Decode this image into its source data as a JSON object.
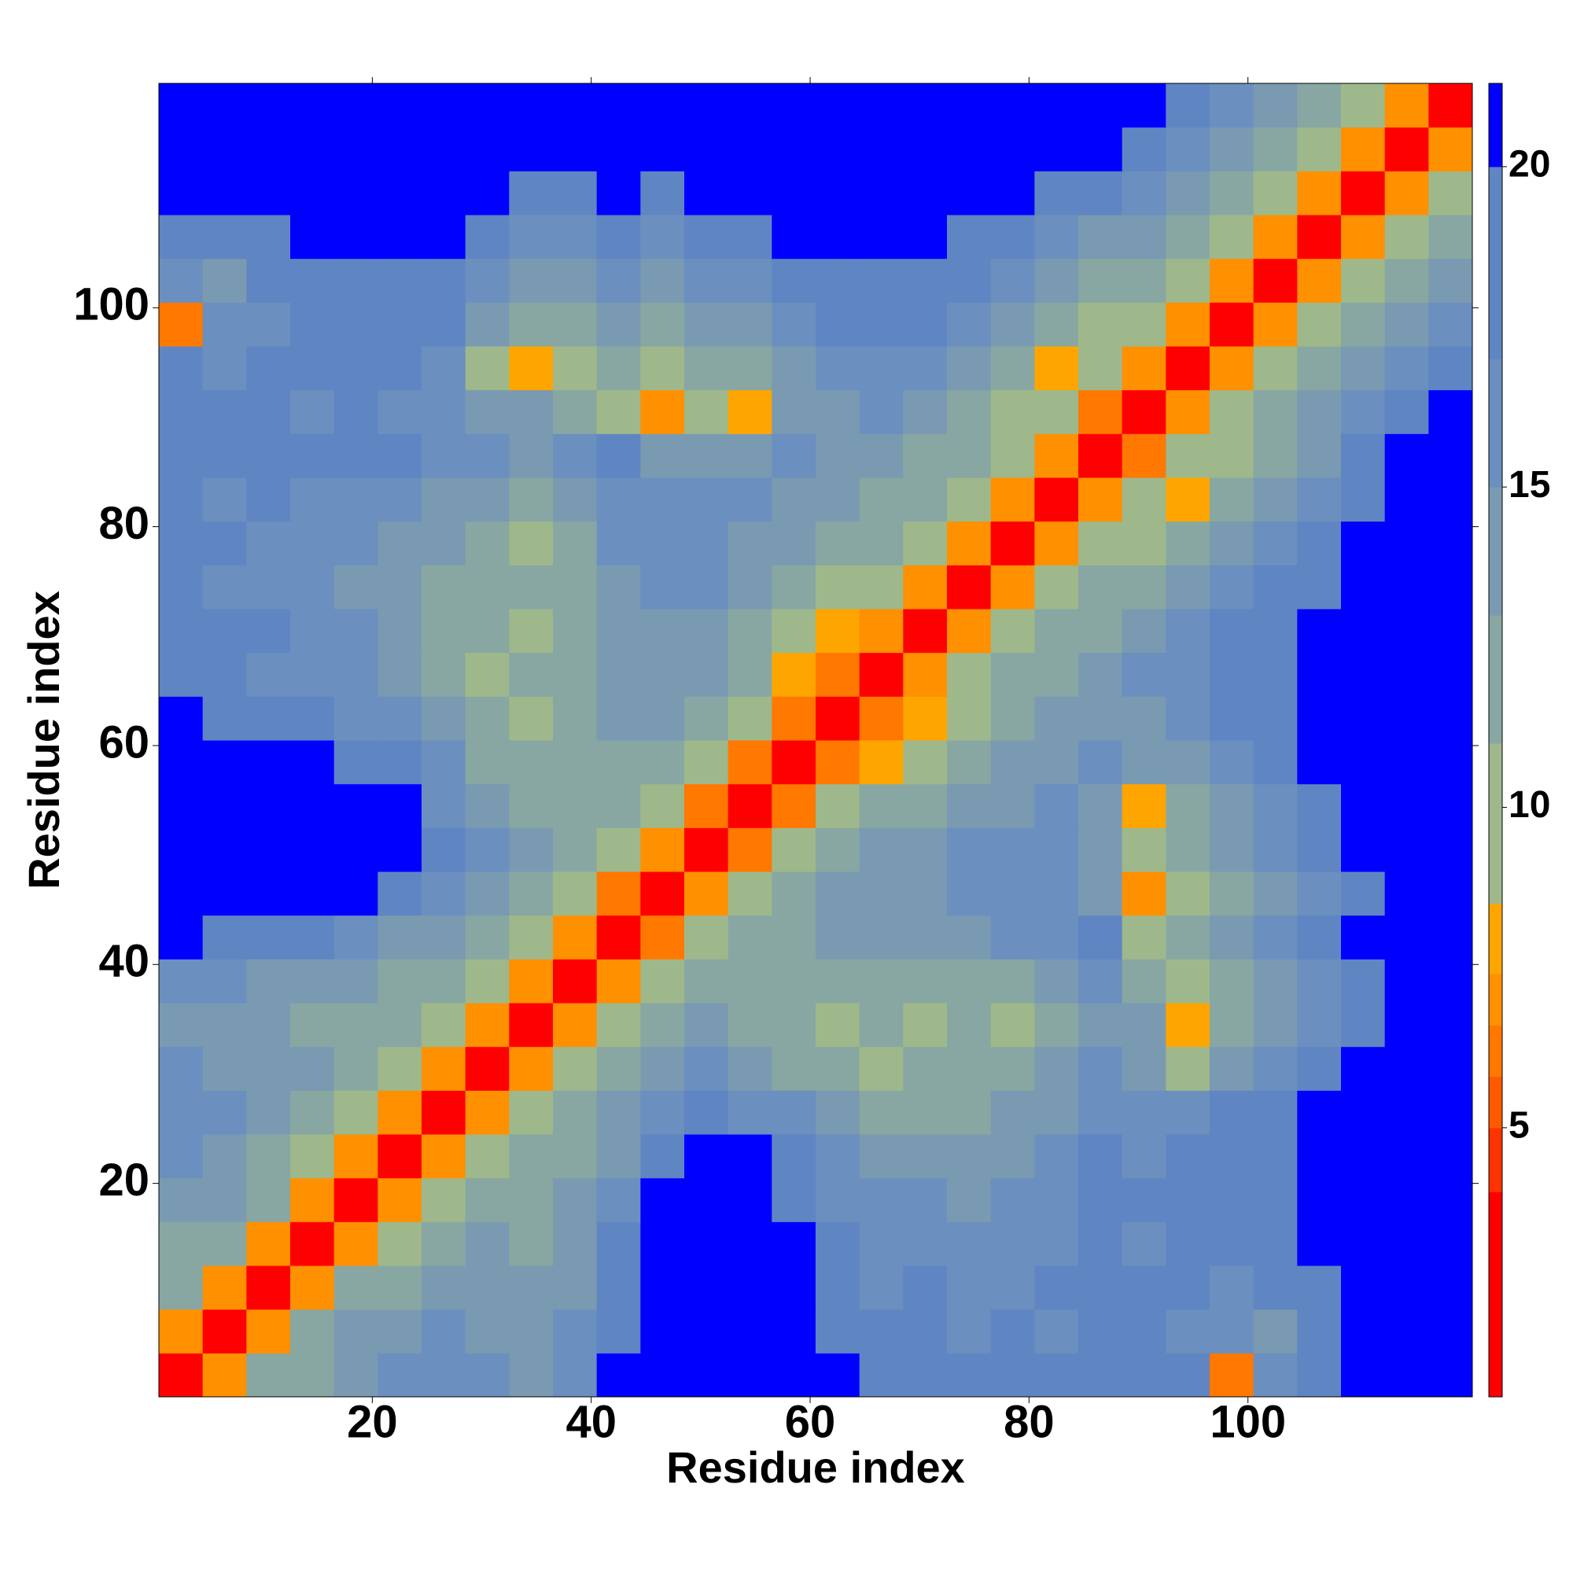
{
  "chart_data": {
    "type": "heatmap",
    "xlabel": "Residue index",
    "ylabel": "Residue index",
    "x_edges": [
      0.5,
      4.5,
      8.5,
      12.5,
      16.5,
      20.5,
      24.5,
      28.5,
      32.5,
      36.5,
      40.5,
      44.5,
      48.5,
      52.5,
      56.5,
      60.5,
      64.5,
      68.5,
      72.5,
      76.5,
      80.5,
      84.5,
      88.5,
      92.5,
      96.5,
      100.5,
      104.5,
      108.5,
      112.5,
      116.5,
      120.5
    ],
    "y_edges": [
      0.5,
      4.5,
      8.5,
      12.5,
      16.5,
      20.5,
      24.5,
      28.5,
      32.5,
      36.5,
      40.5,
      44.5,
      48.5,
      52.5,
      56.5,
      60.5,
      64.5,
      68.5,
      72.5,
      76.5,
      80.5,
      84.5,
      88.5,
      92.5,
      96.5,
      100.5,
      104.5,
      108.5,
      112.5,
      116.5,
      120.5
    ],
    "xlim": [
      0.5,
      120.5
    ],
    "ylim": [
      0.5,
      120.5
    ],
    "xticks": [
      20,
      40,
      60,
      80,
      100
    ],
    "yticks": [
      20,
      40,
      60,
      80,
      100
    ],
    "color_levels": [
      0.8,
      4,
      5,
      5.8,
      6.6,
      7.4,
      8.5,
      11,
      13,
      15,
      17,
      20,
      21.3
    ],
    "colors": [
      "#ff0000",
      "#ff3300",
      "#ff5a00",
      "#ff7800",
      "#ff9000",
      "#ffa500",
      "#9eb88c",
      "#88a7a2",
      "#7a9ab2",
      "#6b8fbe",
      "#5f86c2",
      "#0000ff"
    ],
    "colorbar_lim": [
      0.8,
      21.3
    ],
    "colorbar_ticks": [
      5,
      10,
      15,
      20
    ],
    "values": [
      [
        3,
        7,
        11,
        12,
        14,
        15,
        16,
        15,
        14,
        16,
        21,
        21,
        21,
        21,
        21,
        21,
        19,
        18,
        17,
        18,
        17,
        18,
        19,
        17,
        6,
        15,
        19,
        21,
        21,
        21
      ],
      [
        7,
        3,
        7,
        11,
        13,
        14,
        15,
        14,
        13,
        15,
        19,
        21,
        21,
        21,
        21,
        19,
        17,
        17,
        16,
        17,
        16,
        17,
        18,
        16,
        15,
        14,
        17,
        21,
        21,
        21
      ],
      [
        11,
        7,
        3,
        7,
        11,
        12,
        13,
        14,
        13,
        14,
        18,
        21,
        21,
        21,
        21,
        18,
        16,
        17,
        16,
        15,
        17,
        18,
        17,
        17,
        16,
        17,
        19,
        21,
        21,
        21
      ],
      [
        12,
        11,
        7,
        3,
        7,
        10,
        12,
        13,
        12,
        13,
        17,
        21,
        21,
        21,
        20,
        17,
        15,
        16,
        16,
        15,
        16,
        17,
        16,
        17,
        17,
        18,
        21,
        21,
        21,
        21
      ],
      [
        14,
        13,
        11,
        7,
        3,
        7,
        9,
        11,
        12,
        13,
        16,
        20,
        21,
        21,
        19,
        16,
        15,
        15,
        14,
        15,
        16,
        18,
        17,
        18,
        18,
        19,
        21,
        21,
        21,
        21
      ],
      [
        15,
        14,
        12,
        10,
        7,
        3,
        7,
        9,
        11,
        12,
        14,
        17,
        20,
        21,
        18,
        15,
        14,
        14,
        13,
        14,
        15,
        17,
        16,
        17,
        18,
        19,
        21,
        21,
        21,
        21
      ],
      [
        16,
        15,
        13,
        12,
        9,
        7,
        3,
        7,
        9,
        11,
        13,
        15,
        17,
        16,
        15,
        13,
        12,
        11,
        12,
        13,
        14,
        16,
        15,
        16,
        17,
        18,
        20,
        21,
        21,
        21
      ],
      [
        15,
        14,
        14,
        13,
        11,
        9,
        7,
        3,
        7,
        9,
        11,
        13,
        15,
        14,
        12,
        11,
        10,
        11,
        12,
        11,
        13,
        15,
        14,
        9,
        14,
        16,
        18,
        21,
        21,
        21
      ],
      [
        14,
        13,
        13,
        12,
        12,
        11,
        9,
        7,
        3,
        7,
        9,
        11,
        13,
        12,
        11,
        10,
        11,
        9,
        11,
        10,
        12,
        14,
        13,
        8,
        12,
        14,
        16,
        19,
        21,
        21
      ],
      [
        16,
        15,
        14,
        13,
        13,
        12,
        11,
        9,
        7,
        3,
        7,
        9,
        11,
        12,
        12,
        11,
        12,
        11,
        12,
        11,
        13,
        15,
        12,
        10,
        11,
        13,
        15,
        18,
        21,
        21
      ],
      [
        21,
        19,
        18,
        17,
        16,
        14,
        13,
        11,
        9,
        7,
        3,
        6,
        9,
        11,
        12,
        13,
        14,
        13,
        14,
        15,
        16,
        17,
        9,
        11,
        13,
        15,
        17,
        20,
        21,
        21
      ],
      [
        21,
        21,
        21,
        21,
        20,
        17,
        15,
        13,
        11,
        9,
        6,
        3,
        7,
        10,
        12,
        13,
        13,
        14,
        15,
        16,
        15,
        14,
        7,
        9,
        12,
        14,
        16,
        19,
        21,
        21
      ],
      [
        21,
        21,
        21,
        21,
        21,
        20,
        17,
        15,
        13,
        11,
        9,
        7,
        3,
        6,
        9,
        11,
        13,
        14,
        15,
        16,
        15,
        13,
        9,
        11,
        14,
        16,
        19,
        21,
        21,
        21
      ],
      [
        21,
        21,
        21,
        21,
        21,
        21,
        16,
        14,
        12,
        12,
        11,
        10,
        6,
        3,
        6,
        9,
        11,
        12,
        13,
        14,
        15,
        14,
        8,
        11,
        14,
        16,
        18,
        21,
        21,
        21
      ],
      [
        21,
        21,
        21,
        20,
        19,
        18,
        15,
        12,
        11,
        12,
        12,
        12,
        9,
        6,
        3,
        6,
        8,
        9,
        12,
        13,
        14,
        15,
        13,
        14,
        16,
        18,
        20,
        21,
        21,
        21
      ],
      [
        21,
        19,
        18,
        17,
        16,
        15,
        13,
        11,
        10,
        11,
        13,
        13,
        11,
        9,
        6,
        3,
        6,
        8,
        10,
        12,
        13,
        14,
        14,
        15,
        17,
        19,
        21,
        21,
        21,
        21
      ],
      [
        19,
        17,
        16,
        15,
        15,
        14,
        12,
        10,
        11,
        12,
        14,
        13,
        13,
        11,
        8,
        6,
        3,
        7,
        9,
        11,
        12,
        14,
        15,
        16,
        18,
        19,
        21,
        21,
        21,
        21
      ],
      [
        18,
        17,
        17,
        16,
        15,
        14,
        11,
        11,
        9,
        11,
        13,
        14,
        14,
        12,
        9,
        8,
        7,
        3,
        7,
        9,
        11,
        12,
        13,
        15,
        17,
        18,
        20,
        21,
        21,
        21
      ],
      [
        17,
        16,
        16,
        16,
        14,
        13,
        12,
        12,
        11,
        12,
        14,
        15,
        15,
        13,
        12,
        10,
        9,
        7,
        3,
        7,
        9,
        11,
        12,
        13,
        15,
        17,
        19,
        21,
        21,
        21
      ],
      [
        18,
        17,
        15,
        15,
        15,
        14,
        13,
        11,
        10,
        11,
        15,
        16,
        16,
        14,
        13,
        12,
        11,
        9,
        7,
        3,
        7,
        9,
        10,
        11,
        13,
        15,
        17,
        20,
        21,
        21
      ],
      [
        17,
        16,
        17,
        16,
        16,
        15,
        14,
        13,
        12,
        13,
        16,
        15,
        15,
        15,
        14,
        13,
        12,
        11,
        9,
        7,
        3,
        7,
        9,
        8,
        11,
        13,
        15,
        18,
        21,
        21
      ],
      [
        18,
        17,
        18,
        17,
        18,
        17,
        16,
        15,
        14,
        15,
        17,
        14,
        13,
        14,
        15,
        14,
        14,
        12,
        11,
        9,
        7,
        3,
        6,
        9,
        10,
        12,
        14,
        17,
        20,
        21
      ],
      [
        19,
        18,
        17,
        16,
        17,
        16,
        15,
        14,
        13,
        12,
        9,
        7,
        9,
        8,
        13,
        14,
        15,
        13,
        12,
        10,
        9,
        6,
        3,
        7,
        9,
        11,
        13,
        15,
        18,
        21
      ],
      [
        17,
        16,
        17,
        17,
        18,
        17,
        16,
        9,
        8,
        10,
        11,
        9,
        11,
        11,
        14,
        15,
        16,
        15,
        13,
        11,
        8,
        9,
        7,
        3,
        7,
        9,
        11,
        13,
        15,
        17
      ],
      [
        6,
        15,
        16,
        17,
        18,
        18,
        17,
        14,
        12,
        11,
        13,
        12,
        14,
        14,
        16,
        17,
        18,
        17,
        15,
        13,
        11,
        10,
        9,
        7,
        3,
        7,
        9,
        11,
        13,
        15
      ],
      [
        15,
        14,
        17,
        18,
        19,
        19,
        18,
        16,
        14,
        13,
        15,
        14,
        16,
        16,
        18,
        19,
        19,
        18,
        17,
        15,
        13,
        12,
        11,
        9,
        7,
        3,
        7,
        9,
        11,
        13
      ],
      [
        19,
        17,
        19,
        21,
        21,
        21,
        20,
        18,
        16,
        15,
        17,
        16,
        19,
        18,
        20,
        21,
        21,
        20,
        19,
        17,
        15,
        14,
        13,
        11,
        9,
        7,
        3,
        7,
        9,
        11
      ],
      [
        21,
        21,
        21,
        21,
        21,
        21,
        21,
        21,
        19,
        18,
        20,
        19,
        21,
        21,
        21,
        21,
        21,
        21,
        21,
        20,
        18,
        17,
        15,
        13,
        11,
        9,
        7,
        3,
        7,
        9
      ],
      [
        21,
        21,
        21,
        21,
        21,
        21,
        21,
        21,
        21,
        21,
        21,
        21,
        21,
        21,
        21,
        21,
        21,
        21,
        21,
        21,
        21,
        20,
        18,
        15,
        13,
        11,
        9,
        7,
        3,
        7
      ],
      [
        21,
        21,
        21,
        21,
        21,
        21,
        21,
        21,
        21,
        21,
        21,
        21,
        21,
        21,
        21,
        21,
        21,
        21,
        21,
        21,
        21,
        21,
        21,
        17,
        15,
        13,
        11,
        9,
        7,
        3
      ]
    ]
  }
}
